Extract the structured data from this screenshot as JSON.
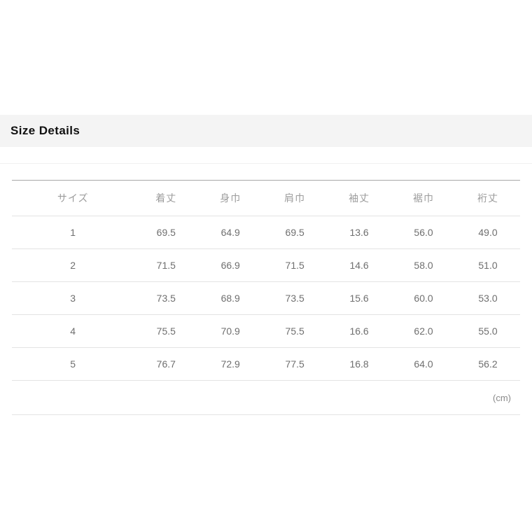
{
  "section": {
    "title": "Size Details"
  },
  "table": {
    "columns": [
      "サイズ",
      "着丈",
      "身巾",
      "肩巾",
      "袖丈",
      "裾巾",
      "裄丈"
    ],
    "rows": [
      [
        "1",
        "69.5",
        "64.9",
        "69.5",
        "13.6",
        "56.0",
        "49.0"
      ],
      [
        "2",
        "71.5",
        "66.9",
        "71.5",
        "14.6",
        "58.0",
        "51.0"
      ],
      [
        "3",
        "73.5",
        "68.9",
        "73.5",
        "15.6",
        "60.0",
        "53.0"
      ],
      [
        "4",
        "75.5",
        "70.9",
        "75.5",
        "16.6",
        "62.0",
        "55.0"
      ],
      [
        "5",
        "76.7",
        "72.9",
        "77.5",
        "16.8",
        "64.0",
        "56.2"
      ]
    ],
    "unit_note": "(cm)"
  },
  "colors": {
    "section_header_background": "#f4f4f4",
    "title_text": "#111111",
    "column_header_text": "#9c9c9c",
    "cell_text": "#6f6f6f",
    "table_top_border": "#a8a8a8",
    "row_separator": "#e3e3e3",
    "page_background": "#ffffff"
  }
}
